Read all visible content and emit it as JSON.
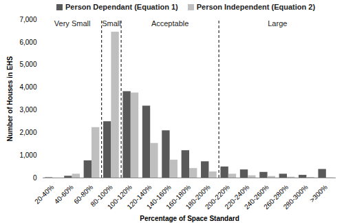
{
  "chart_data": {
    "type": "bar",
    "x_label": "Percentage of Space Standard",
    "y_label": "Number of Houses in EHS",
    "categories": [
      "20-40%",
      "40-60%",
      "60-80%",
      "80-100%",
      "100-120%",
      "120-140%",
      "140-160%",
      "160-180%",
      "180-200%",
      "200-220%",
      "220-240%",
      "240-260%",
      "260-280%",
      "280-300%",
      ">300%"
    ],
    "series": [
      {
        "name": "Person Dependant (Equation 1)",
        "color": "#595959",
        "values": [
          15,
          80,
          760,
          2490,
          3820,
          3180,
          2090,
          1210,
          720,
          490,
          360,
          250,
          170,
          120,
          380
        ]
      },
      {
        "name": "Person Independent (Equation 2)",
        "color": "#bfbfbf",
        "values": [
          0,
          170,
          2230,
          6450,
          3760,
          1530,
          790,
          420,
          270,
          170,
          100,
          70,
          40,
          30,
          10
        ]
      }
    ],
    "ylim": [
      0,
      7000
    ],
    "yticks": [
      0,
      {
        "value": 1000,
        "label": "1,000"
      },
      {
        "value": 2000,
        "label": "2,000"
      },
      {
        "value": 3000,
        "label": "3,000"
      },
      {
        "value": 4000,
        "label": "4,000"
      },
      {
        "value": 5000,
        "label": "5,000"
      },
      {
        "value": 6000,
        "label": "6,000"
      },
      {
        "value": 7000,
        "label": "7,000"
      }
    ],
    "annotations": [
      {
        "text": "Very Small",
        "category": "20-40%"
      },
      {
        "text": "Small",
        "category": "80-100%"
      },
      {
        "text": "Acceptable",
        "category": "100-120%"
      },
      {
        "text": "Large",
        "category": "200-220%"
      }
    ],
    "grid": false,
    "legend": "top"
  }
}
